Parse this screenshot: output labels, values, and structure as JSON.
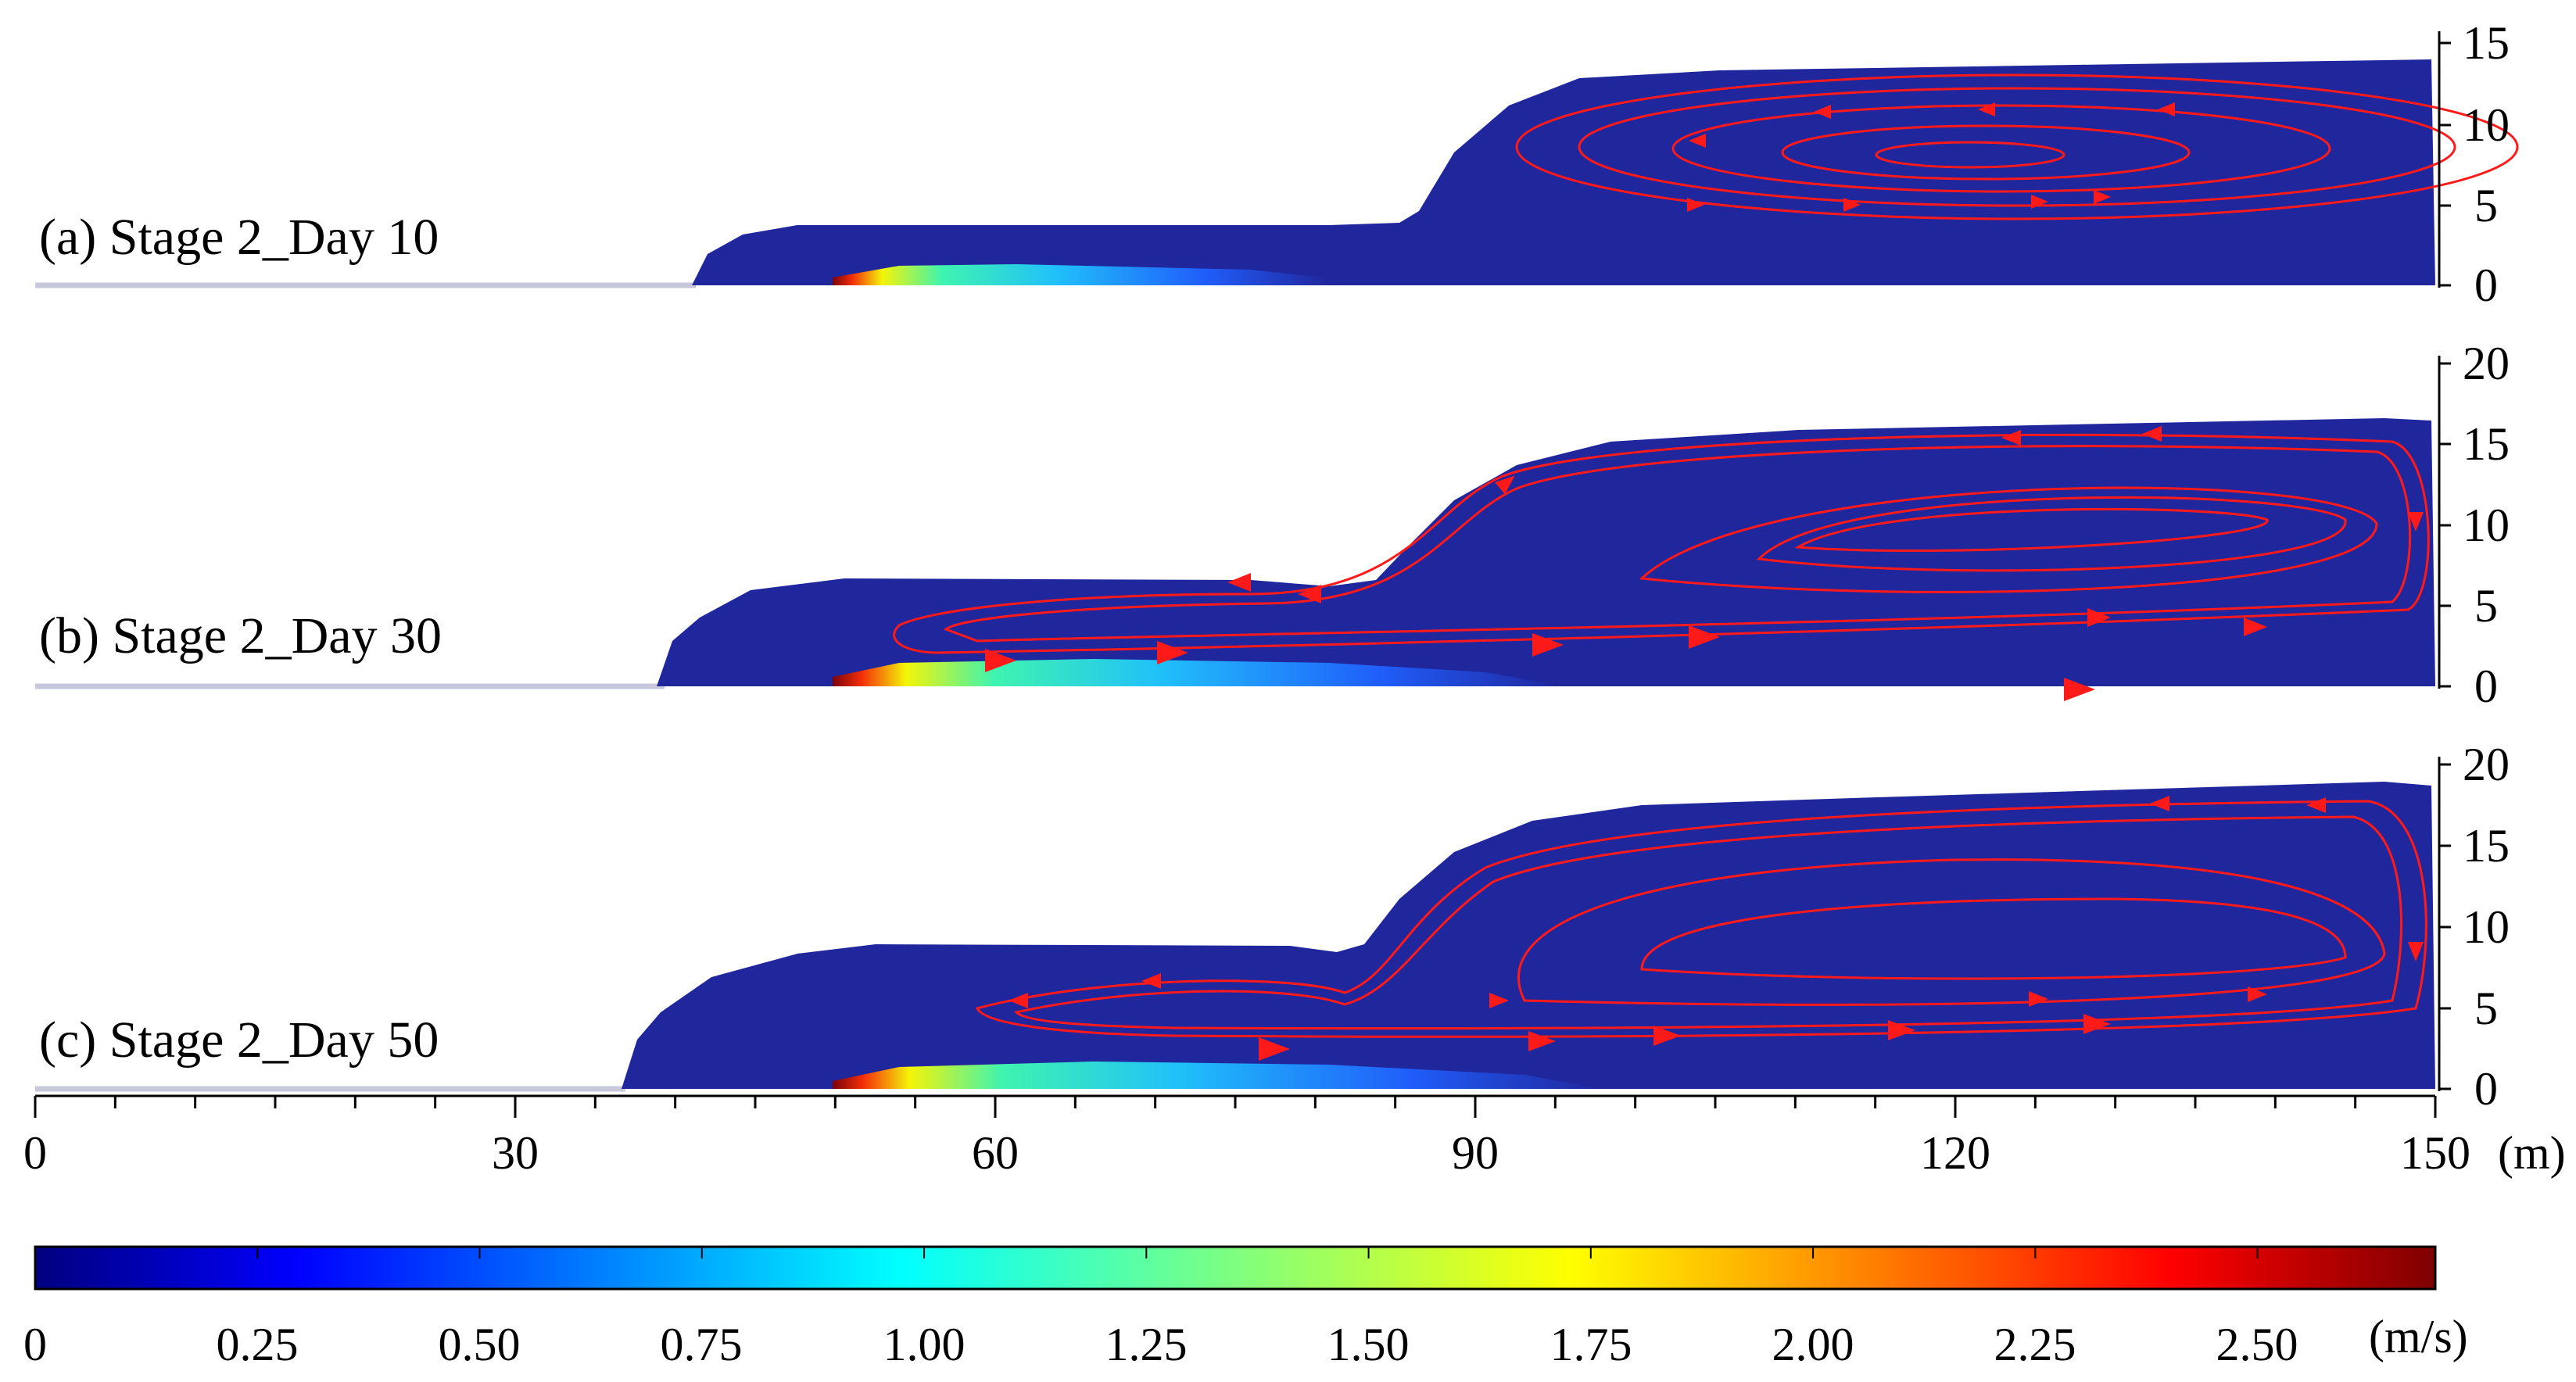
{
  "colors": {
    "background_fluid": "#20269c",
    "streamline": "#ff1a1a",
    "bed_line": "#c8c8dc",
    "axis": "#000000"
  },
  "panels": [
    {
      "label": "(a) Stage 2_Day 10",
      "y_ticks": [
        "15",
        "10",
        "5",
        "0"
      ],
      "y_max": 15
    },
    {
      "label": "(b) Stage 2_Day 30",
      "y_ticks": [
        "20",
        "15",
        "10",
        "5",
        "0"
      ],
      "y_max": 20
    },
    {
      "label": "(c) Stage 2_Day 50",
      "y_ticks": [
        "20",
        "15",
        "10",
        "5",
        "0"
      ],
      "y_max": 20
    }
  ],
  "x_axis": {
    "ticks": [
      "0",
      "30",
      "60",
      "90",
      "120",
      "150"
    ],
    "unit": "(m)",
    "range": [
      0,
      150
    ]
  },
  "colorbar": {
    "ticks": [
      "0",
      "0.25",
      "0.50",
      "0.75",
      "1.00",
      "1.25",
      "1.50",
      "1.75",
      "2.00",
      "2.25",
      "2.50"
    ],
    "unit": "(m/s)",
    "range": [
      0,
      2.7
    ],
    "colormap": "jet"
  }
}
